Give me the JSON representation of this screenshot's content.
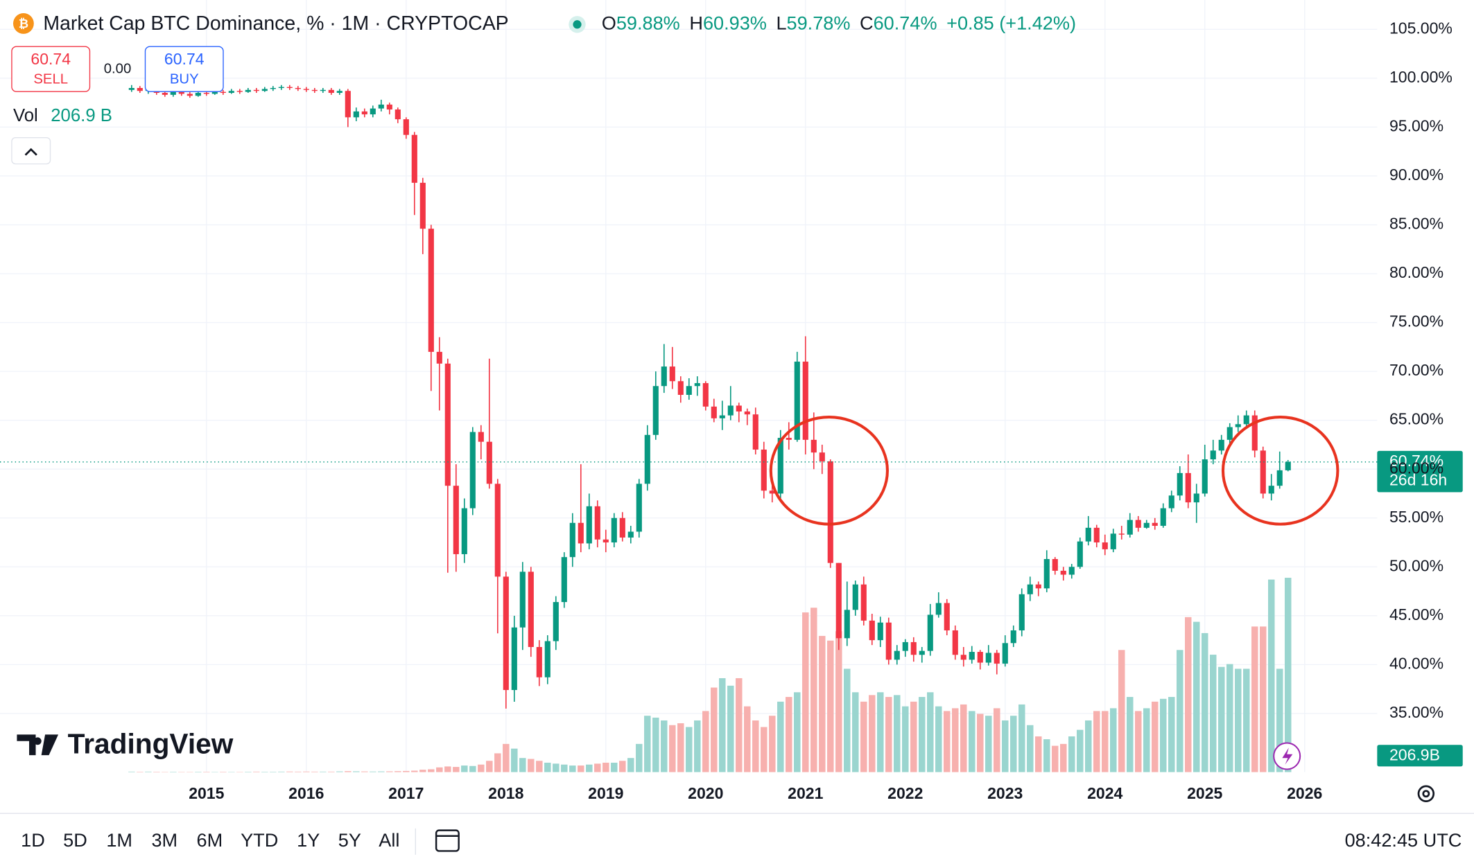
{
  "header": {
    "title": "Market Cap BTC Dominance, % · 1M · CRYPTOCAP",
    "ohlc": [
      {
        "label": "O",
        "value": "59.88%"
      },
      {
        "label": "H",
        "value": "60.93%"
      },
      {
        "label": "L",
        "value": "59.78%"
      },
      {
        "label": "C",
        "value": "60.74%"
      }
    ],
    "change": "+0.85 (+1.42%)"
  },
  "trade": {
    "sell_price": "60.74",
    "sell": "SELL",
    "spread": "0.00",
    "buy_price": "60.74",
    "buy": "BUY"
  },
  "price_badge": {
    "value": "60.74%",
    "countdown": "26d 16h"
  },
  "brand": "TradingView",
  "intervals": [
    "1D",
    "5D",
    "1M",
    "3M",
    "6M",
    "YTD",
    "1Y",
    "5Y",
    "All"
  ],
  "clock": "08:42:45 UTC",
  "chart_data": {
    "type": "candlestick",
    "ylim": [
      29,
      108
    ],
    "yticks": [
      {
        "value": 105,
        "label": "105.00%"
      },
      {
        "value": 100,
        "label": "100.00%"
      },
      {
        "value": 95,
        "label": "95.00%"
      },
      {
        "value": 90,
        "label": "90.00%"
      },
      {
        "value": 85,
        "label": "85.00%"
      },
      {
        "value": 80,
        "label": "80.00%"
      },
      {
        "value": 75,
        "label": "75.00%"
      },
      {
        "value": 70,
        "label": "70.00%"
      },
      {
        "value": 65,
        "label": "65.00%"
      },
      {
        "value": 60,
        "label": "60.00%"
      },
      {
        "value": 55,
        "label": "55.00%"
      },
      {
        "value": 50,
        "label": "50.00%"
      },
      {
        "value": 45,
        "label": "45.00%"
      },
      {
        "value": 40,
        "label": "40.00%"
      },
      {
        "value": 35,
        "label": "35.00%"
      }
    ],
    "xticks": [
      {
        "value": 9,
        "label": "2015"
      },
      {
        "value": 21,
        "label": "2016"
      },
      {
        "value": 33,
        "label": "2017"
      },
      {
        "value": 45,
        "label": "2018"
      },
      {
        "value": 57,
        "label": "2019"
      },
      {
        "value": 69,
        "label": "2020"
      },
      {
        "value": 81,
        "label": "2021"
      },
      {
        "value": 93,
        "label": "2022"
      },
      {
        "value": 105,
        "label": "2023"
      },
      {
        "value": 117,
        "label": "2024"
      },
      {
        "value": 129,
        "label": "2025"
      },
      {
        "value": 141,
        "label": "2026"
      }
    ],
    "grid": true,
    "up_color": "#089981",
    "down_color": "#f23645",
    "series": [
      {
        "name": "BTC Dominance",
        "open": [
          98.8,
          99.0,
          98.7,
          98.9,
          98.5,
          98.3,
          98.6,
          98.4,
          98.2,
          98.5,
          98.4,
          98.6,
          98.5,
          98.7,
          98.6,
          98.8,
          98.7,
          98.9,
          99.0,
          99.1,
          99.0,
          98.9,
          98.8,
          98.7,
          98.8,
          98.5,
          98.7,
          96.0,
          96.6,
          96.3,
          96.9,
          97.3,
          96.8,
          95.8,
          94.2,
          89.3,
          84.6,
          72.0,
          70.8,
          58.3,
          51.3,
          56.0,
          63.8,
          62.8,
          58.5,
          49.0,
          37.4,
          43.8,
          49.5,
          41.8,
          38.7,
          42.4,
          46.4,
          51.0,
          54.5,
          52.4,
          56.2,
          52.8,
          52.5,
          55.0,
          53.0,
          53.6,
          58.5,
          63.5,
          68.5,
          70.5,
          69.0,
          67.6,
          68.5,
          68.8,
          66.4,
          65.2,
          65.5,
          66.5,
          65.9,
          65.6,
          62.0,
          57.8,
          57.5,
          63.2,
          63.0,
          71.0,
          63.0,
          61.7,
          60.8,
          50.4,
          42.7,
          45.6,
          48.2,
          44.5,
          42.5,
          44.3,
          40.5,
          41.4,
          42.3,
          41.0,
          41.4,
          45.1,
          46.3,
          43.5,
          41.0,
          40.5,
          41.3,
          40.2,
          41.2,
          40.1,
          42.2,
          43.5,
          47.2,
          48.2,
          47.8,
          50.8,
          49.6,
          49.2,
          50.0,
          52.6,
          54.0,
          52.5,
          51.8,
          53.4,
          53.3,
          54.8,
          54.0,
          54.5,
          54.2,
          56.0,
          57.3,
          59.6,
          56.6,
          57.5,
          61.0,
          61.9,
          63.0,
          64.3,
          64.6,
          65.5,
          61.9,
          57.5,
          58.3,
          59.88
        ],
        "high": [
          99.3,
          99.2,
          99.1,
          99.1,
          98.8,
          98.8,
          98.8,
          98.6,
          98.7,
          98.7,
          98.8,
          98.8,
          98.9,
          98.9,
          99.0,
          99.0,
          99.1,
          99.2,
          99.3,
          99.3,
          99.2,
          99.1,
          99.0,
          99.0,
          99.0,
          98.9,
          98.9,
          97.0,
          96.9,
          97.2,
          97.8,
          97.5,
          97.0,
          96.0,
          94.5,
          89.8,
          85.0,
          73.5,
          71.3,
          60.5,
          57.0,
          64.3,
          64.5,
          71.3,
          59.0,
          49.5,
          45.0,
          50.5,
          50.0,
          42.5,
          43.0,
          47.0,
          51.5,
          55.5,
          60.5,
          57.5,
          56.8,
          53.8,
          55.5,
          55.6,
          54.2,
          59.0,
          64.5,
          70.0,
          72.8,
          72.5,
          69.5,
          69.3,
          69.5,
          69.0,
          67.2,
          67.0,
          68.5,
          66.8,
          66.2,
          66.3,
          62.8,
          58.7,
          64.0,
          64.8,
          72.0,
          73.6,
          65.8,
          62.5,
          61.0,
          50.4,
          48.5,
          48.6,
          49.0,
          45.2,
          44.9,
          44.8,
          42.0,
          42.6,
          42.8,
          41.8,
          46.2,
          47.4,
          46.7,
          44.0,
          41.8,
          41.9,
          41.5,
          42.0,
          41.5,
          43.0,
          44.0,
          47.8,
          49.0,
          48.5,
          51.7,
          51.0,
          50.0,
          50.3,
          53.0,
          55.2,
          54.3,
          53.3,
          53.9,
          54.2,
          55.5,
          55.2,
          54.8,
          55.0,
          56.5,
          57.8,
          60.3,
          61.5,
          58.5,
          62.5,
          63.0,
          63.5,
          64.7,
          65.5,
          66.0,
          66.0,
          62.3,
          59.5,
          61.8,
          60.93
        ],
        "low": [
          98.6,
          98.5,
          98.4,
          98.3,
          98.1,
          98.1,
          98.2,
          98.0,
          98.1,
          98.2,
          98.3,
          98.3,
          98.4,
          98.4,
          98.5,
          98.5,
          98.6,
          98.7,
          98.8,
          98.8,
          98.7,
          98.6,
          98.5,
          98.5,
          98.3,
          98.3,
          95.0,
          95.6,
          96.0,
          96.0,
          96.6,
          96.3,
          95.4,
          93.8,
          86.0,
          82.0,
          68.0,
          66.0,
          49.4,
          49.5,
          50.4,
          55.3,
          61.0,
          58.0,
          43.2,
          35.5,
          36.2,
          41.5,
          40.8,
          37.8,
          38.0,
          41.5,
          45.8,
          50.0,
          51.5,
          51.8,
          52.0,
          51.5,
          52.0,
          52.6,
          52.4,
          53.0,
          57.8,
          63.0,
          67.8,
          68.2,
          66.8,
          67.1,
          67.5,
          66.0,
          64.8,
          64.0,
          65.0,
          64.8,
          64.5,
          61.5,
          57.0,
          56.6,
          57.0,
          62.0,
          62.8,
          61.5,
          60.0,
          59.5,
          49.9,
          41.5,
          41.9,
          45.0,
          44.0,
          42.0,
          41.8,
          40.0,
          40.0,
          40.8,
          40.3,
          40.2,
          40.9,
          44.8,
          43.0,
          40.5,
          39.8,
          40.1,
          39.5,
          39.9,
          39.0,
          39.8,
          41.8,
          42.9,
          46.5,
          47.0,
          47.4,
          49.2,
          48.6,
          48.8,
          49.8,
          52.2,
          52.0,
          51.2,
          51.5,
          52.8,
          53.0,
          53.6,
          53.9,
          53.8,
          54.0,
          55.6,
          56.8,
          56.0,
          54.5,
          57.2,
          60.5,
          61.5,
          62.5,
          63.8,
          64.2,
          61.2,
          57.0,
          56.8,
          58.0,
          59.78
        ],
        "close": [
          99.0,
          98.7,
          98.9,
          98.5,
          98.3,
          98.6,
          98.4,
          98.2,
          98.5,
          98.4,
          98.6,
          98.5,
          98.7,
          98.6,
          98.8,
          98.7,
          98.9,
          99.0,
          99.1,
          99.0,
          98.9,
          98.8,
          98.7,
          98.8,
          98.5,
          98.7,
          96.0,
          96.6,
          96.3,
          96.9,
          97.3,
          96.8,
          95.8,
          94.2,
          89.3,
          84.6,
          72.0,
          70.8,
          58.3,
          51.3,
          56.0,
          63.8,
          62.8,
          58.5,
          49.0,
          37.4,
          43.8,
          49.5,
          41.8,
          38.7,
          42.4,
          46.4,
          51.0,
          54.5,
          52.4,
          56.2,
          52.8,
          52.5,
          55.0,
          53.0,
          53.6,
          58.5,
          63.5,
          68.5,
          70.5,
          69.0,
          67.6,
          68.5,
          68.8,
          66.4,
          65.2,
          65.5,
          66.5,
          65.9,
          65.6,
          62.0,
          57.8,
          57.5,
          63.2,
          63.0,
          71.0,
          63.0,
          61.7,
          60.8,
          50.4,
          42.7,
          45.6,
          48.2,
          44.5,
          42.5,
          44.3,
          40.5,
          41.4,
          42.3,
          41.0,
          41.4,
          45.1,
          46.3,
          43.5,
          41.0,
          40.5,
          41.3,
          40.2,
          41.2,
          40.1,
          42.2,
          43.5,
          47.2,
          48.2,
          47.8,
          50.8,
          49.6,
          49.2,
          50.0,
          52.6,
          54.0,
          52.5,
          51.8,
          53.4,
          53.3,
          54.8,
          54.0,
          54.5,
          54.2,
          56.0,
          57.3,
          59.6,
          56.6,
          57.5,
          61.0,
          61.9,
          63.0,
          64.3,
          64.6,
          65.5,
          61.9,
          57.5,
          58.3,
          59.88,
          60.74
        ]
      }
    ],
    "volume": {
      "name": "Vol",
      "vlim": [
        0,
        210
      ],
      "up_color": "#9ad5cf",
      "down_color": "#f7b0ae",
      "legend_label": "206.9 B",
      "axis_label": "206.9B",
      "values": [
        0.5,
        0.4,
        0.5,
        0.4,
        0.3,
        0.4,
        0.3,
        0.3,
        0.4,
        0.4,
        0.3,
        0.4,
        0.3,
        0.3,
        0.4,
        0.5,
        0.4,
        0.4,
        0.5,
        0.6,
        0.5,
        0.6,
        0.5,
        0.5,
        0.5,
        0.7,
        1.0,
        0.8,
        0.7,
        0.6,
        0.7,
        0.8,
        1.0,
        1.2,
        1.5,
        2.5,
        3.0,
        5.0,
        6.0,
        5.5,
        7.0,
        6.5,
        8.0,
        12.0,
        20.0,
        30,
        25,
        15,
        14,
        12,
        10,
        9,
        8,
        7,
        7,
        8,
        9,
        10,
        10,
        12,
        15,
        30,
        60,
        58,
        55,
        50,
        52,
        48,
        55,
        65,
        90,
        100,
        92,
        100,
        70,
        55,
        48,
        60,
        75,
        80,
        85,
        170,
        175,
        145,
        140,
        150,
        110,
        85,
        75,
        82,
        85,
        80,
        82,
        70,
        75,
        80,
        85,
        70,
        65,
        68,
        72,
        65,
        62,
        60,
        68,
        55,
        60,
        72,
        50,
        38,
        35,
        28,
        30,
        38,
        45,
        55,
        65,
        65,
        68,
        130,
        80,
        65,
        68,
        75,
        78,
        80,
        130,
        165,
        160,
        148,
        125,
        112,
        115,
        110,
        110,
        155,
        155,
        205,
        110,
        206.9
      ]
    }
  }
}
